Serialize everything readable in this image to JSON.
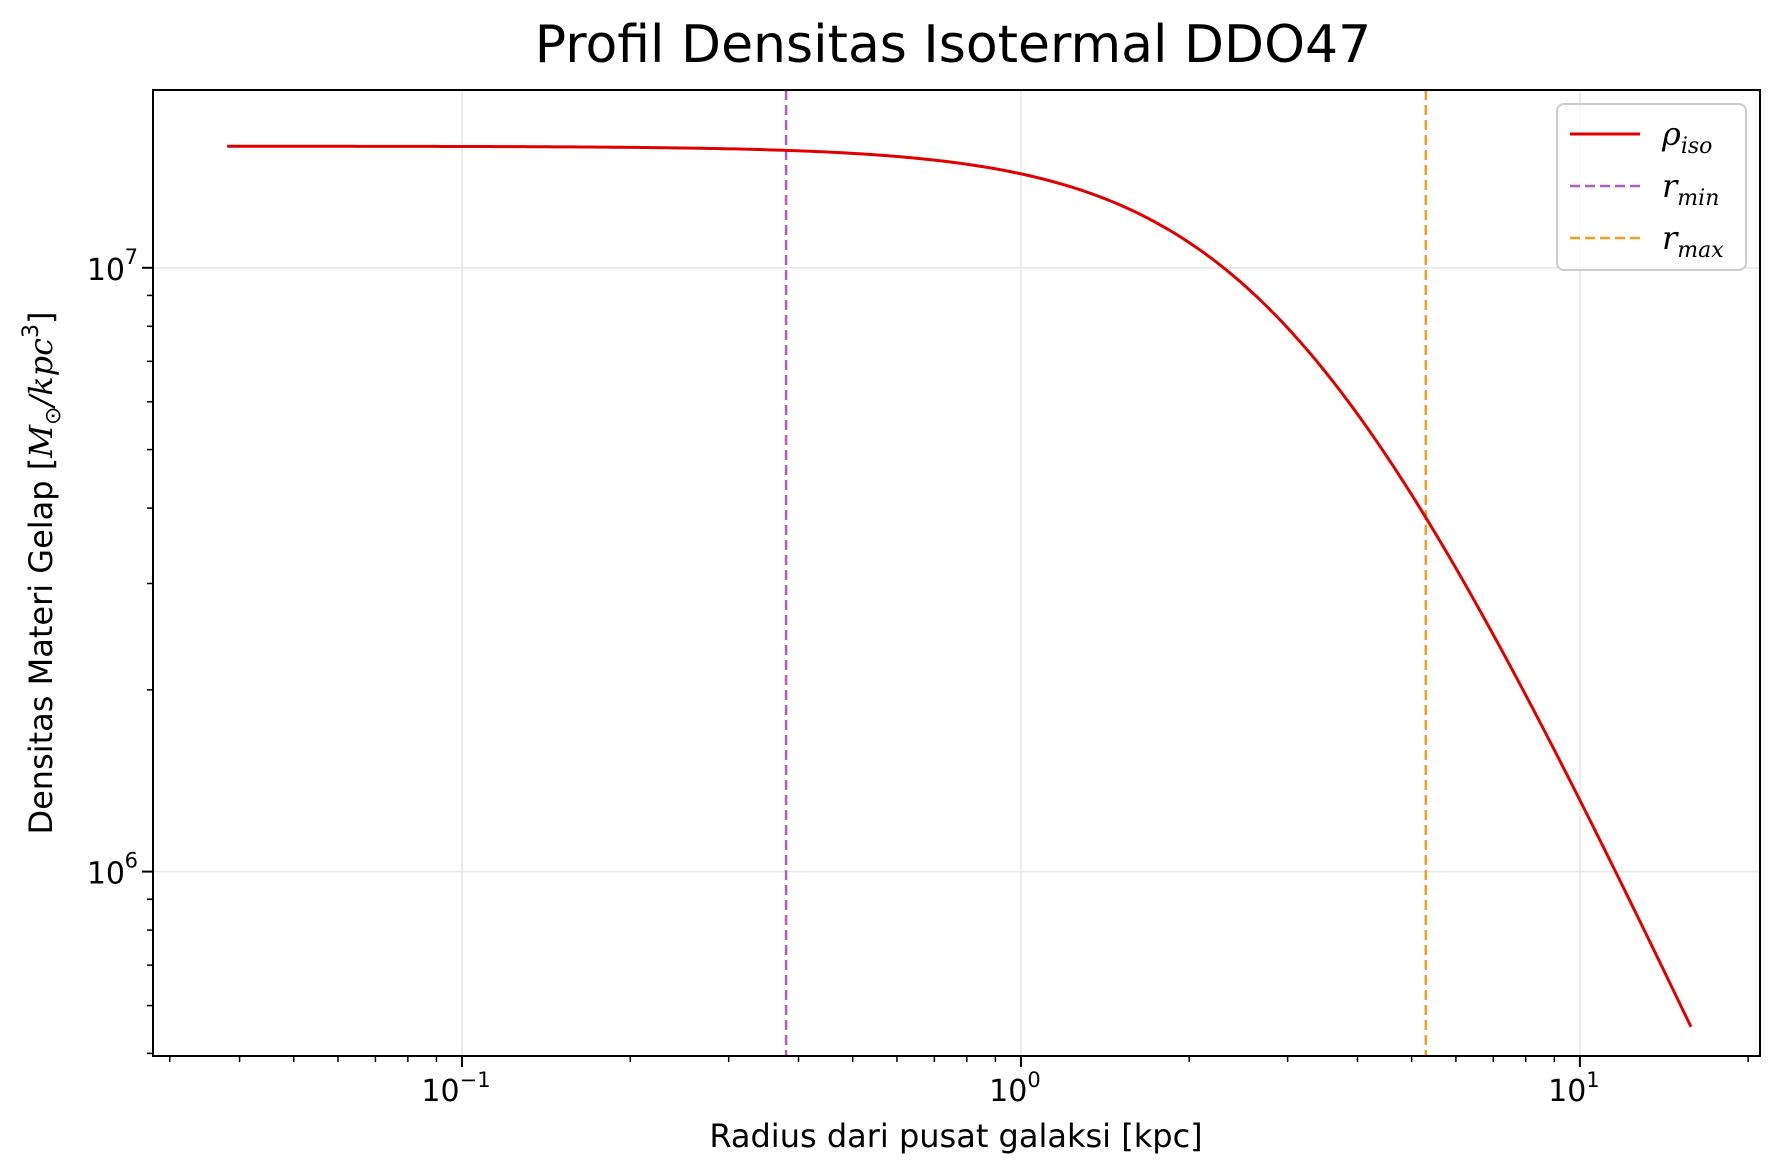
{
  "chart_data": {
    "type": "line",
    "title": "Profil Densitas Isotermal DDO47",
    "xlabel": "Radius dari pusat galaksi [kpc]",
    "ylabel_prefix": "Densitas Materi Gelap [",
    "ylabel_unit_mass": "M",
    "ylabel_unit_sun": "⊙",
    "ylabel_unit_rest": "/kpc",
    "ylabel_unit_pow": "3",
    "ylabel_suffix": "]",
    "xscale": "log",
    "yscale": "log",
    "xlim": [
      0.028,
      21
    ],
    "ylim": [
      495000,
      19700000
    ],
    "x_ticks": [
      {
        "value": 0.1,
        "base": "10",
        "exp": "−1"
      },
      {
        "value": 1,
        "base": "10",
        "exp": "0"
      },
      {
        "value": 10,
        "base": "10",
        "exp": "1"
      }
    ],
    "y_ticks": [
      {
        "value": 1000000,
        "base": "10",
        "exp": "6"
      },
      {
        "value": 10000000,
        "base": "10",
        "exp": "7"
      }
    ],
    "grid": true,
    "series": [
      {
        "name": "ρ_iso",
        "legend_main": "ρ",
        "legend_sub": "iso",
        "color": "#e00000",
        "style": "solid",
        "model": "rho0 / (1 + (r/rc)^2)",
        "rho0": 15900000,
        "rc": 3.0,
        "x_range": [
          0.038,
          15.8
        ]
      }
    ],
    "vlines": [
      {
        "name": "r_min",
        "legend_main": "r",
        "legend_sub": "min",
        "x": 0.38,
        "color": "#b05cc8",
        "style": "dashed"
      },
      {
        "name": "r_max",
        "legend_main": "r",
        "legend_sub": "max",
        "x": 5.3,
        "color": "#f0a020",
        "style": "dashed"
      }
    ],
    "legend_position": "upper right"
  }
}
